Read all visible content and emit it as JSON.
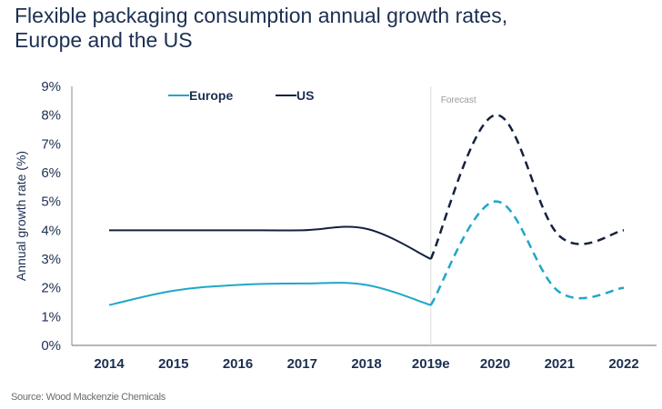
{
  "chart_data": {
    "type": "line",
    "title_line1": "Flexible packaging consumption annual growth rates,",
    "title_line2": "Europe and the US",
    "xlabel": "",
    "ylabel": "Annual growth rate (%)",
    "categories": [
      "2014",
      "2015",
      "2016",
      "2017",
      "2018",
      "2019e",
      "2020",
      "2021",
      "2022"
    ],
    "ylim": [
      0,
      9
    ],
    "yticks": [
      0,
      1,
      2,
      3,
      4,
      5,
      6,
      7,
      8,
      9
    ],
    "ytick_labels": [
      "0%",
      "1%",
      "2%",
      "3%",
      "4%",
      "5%",
      "6%",
      "7%",
      "8%",
      "9%"
    ],
    "grid": false,
    "legend_position": "top-left",
    "forecast_start_index": 5,
    "annotation": "Forecast",
    "series": [
      {
        "name": "Europe",
        "color": "#1fa7c9",
        "values": [
          1.4,
          1.9,
          2.1,
          2.15,
          2.1,
          1.4,
          5.0,
          1.85,
          2.0
        ]
      },
      {
        "name": "US",
        "color": "#14213d",
        "values": [
          4.0,
          4.0,
          4.0,
          4.0,
          4.05,
          3.0,
          8.0,
          3.8,
          4.0
        ]
      }
    ]
  },
  "source": "Source: Wood Mackenzie Chemicals"
}
